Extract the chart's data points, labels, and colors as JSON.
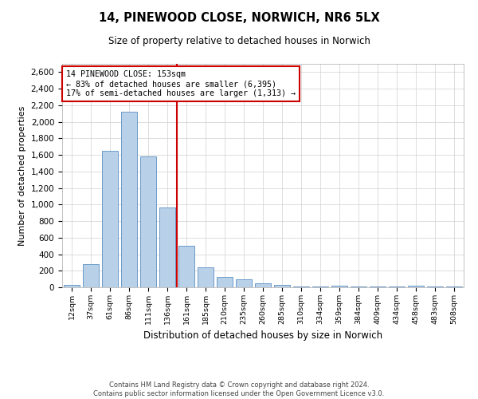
{
  "title": "14, PINEWOOD CLOSE, NORWICH, NR6 5LX",
  "subtitle": "Size of property relative to detached houses in Norwich",
  "xlabel": "Distribution of detached houses by size in Norwich",
  "ylabel": "Number of detached properties",
  "categories": [
    "12sqm",
    "37sqm",
    "61sqm",
    "86sqm",
    "111sqm",
    "136sqm",
    "161sqm",
    "185sqm",
    "210sqm",
    "235sqm",
    "260sqm",
    "285sqm",
    "310sqm",
    "334sqm",
    "359sqm",
    "384sqm",
    "409sqm",
    "434sqm",
    "458sqm",
    "483sqm",
    "508sqm"
  ],
  "values": [
    30,
    280,
    1650,
    2125,
    1580,
    960,
    500,
    245,
    130,
    100,
    45,
    30,
    10,
    10,
    15,
    10,
    5,
    5,
    20,
    5,
    5
  ],
  "bar_color": "#b8d0e8",
  "bar_edge_color": "#5a8fc2",
  "vline_color": "#cc0000",
  "annotation_text": "14 PINEWOOD CLOSE: 153sqm\n← 83% of detached houses are smaller (6,395)\n17% of semi-detached houses are larger (1,313) →",
  "annotation_box_color": "#ffffff",
  "annotation_box_edge": "#cc0000",
  "ylim": [
    0,
    2700
  ],
  "yticks": [
    0,
    200,
    400,
    600,
    800,
    1000,
    1200,
    1400,
    1600,
    1800,
    2000,
    2200,
    2400,
    2600
  ],
  "grid_color": "#d0d0d0",
  "background_color": "#ffffff",
  "footer_line1": "Contains HM Land Registry data © Crown copyright and database right 2024.",
  "footer_line2": "Contains public sector information licensed under the Open Government Licence v3.0."
}
